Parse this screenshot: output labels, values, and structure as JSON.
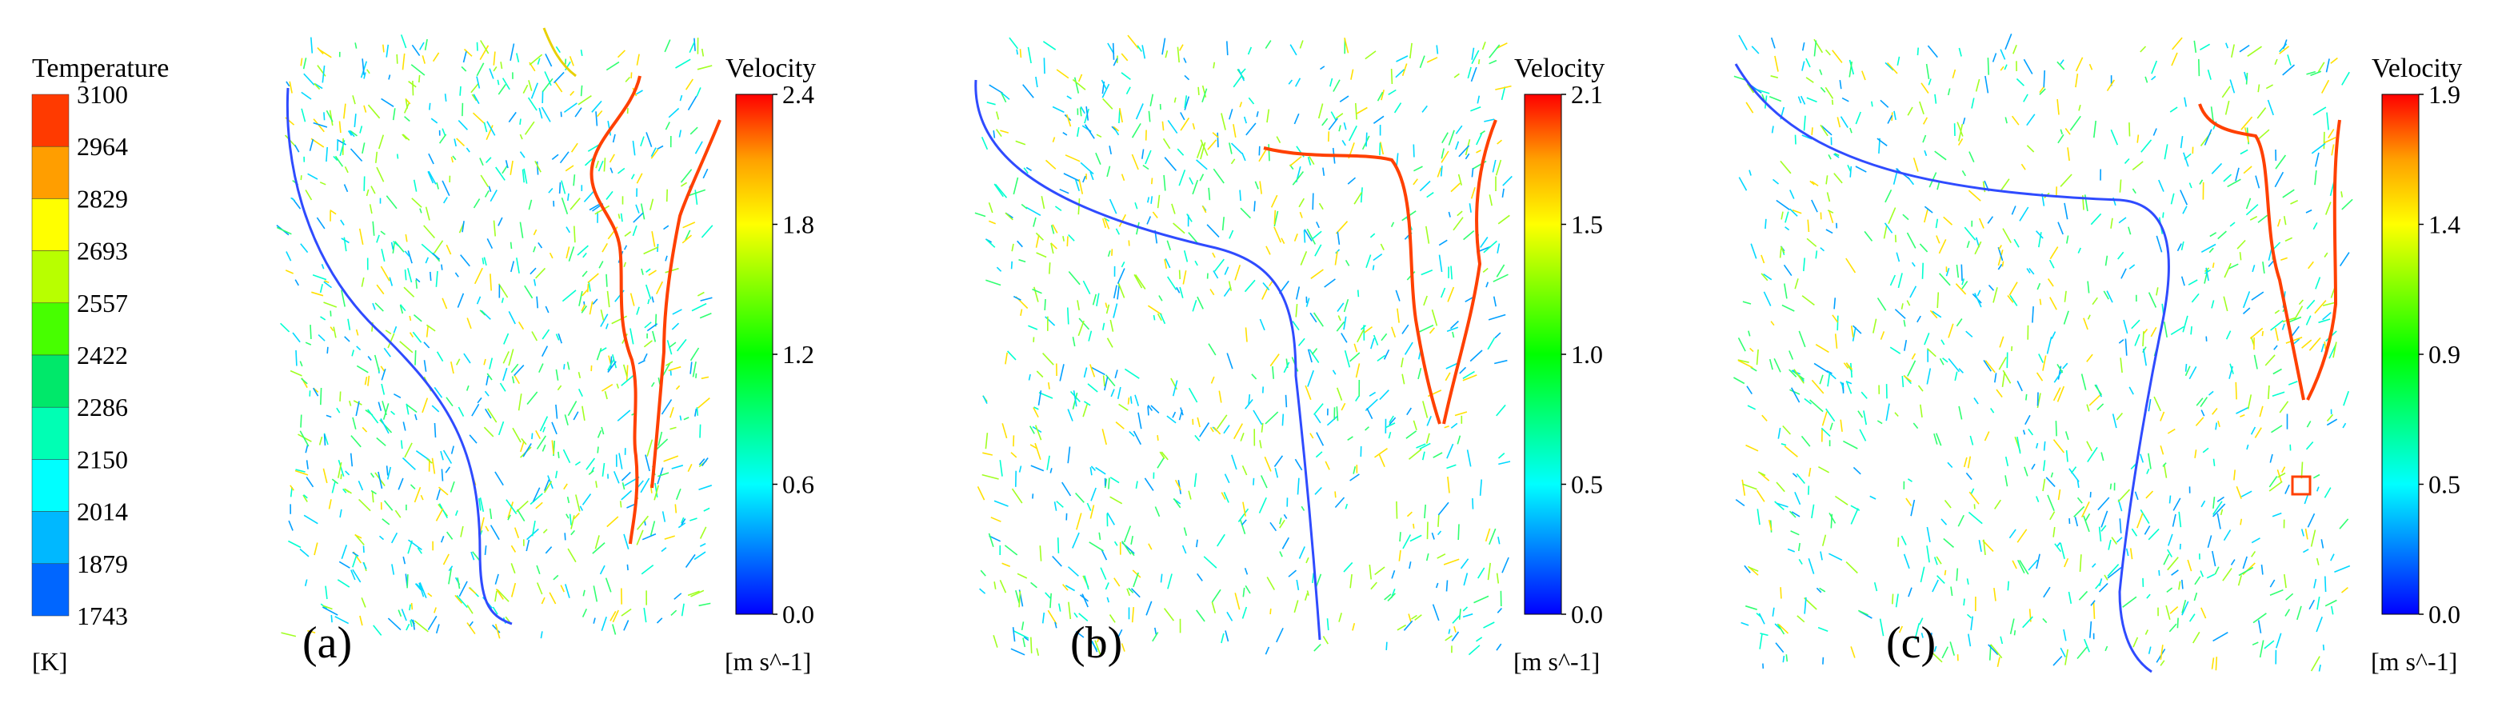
{
  "temperature_legend": {
    "title": "Temperature",
    "unit": "[K]",
    "levels": [
      "3100",
      "2964",
      "2829",
      "2693",
      "2557",
      "2422",
      "2286",
      "2150",
      "2014",
      "1879",
      "1743"
    ],
    "colors": [
      "#ff3a00",
      "#ff9e00",
      "#ffff00",
      "#b8ff00",
      "#47ff00",
      "#00e86a",
      "#00ffb4",
      "#00ffff",
      "#00b8ff",
      "#0066ff",
      "#0000ff"
    ]
  },
  "panels": [
    {
      "label": "(a)",
      "velocity": {
        "title": "Velocity",
        "unit": "[m s^-1]",
        "ticks": [
          "2.4",
          "1.8",
          "1.2",
          "0.6",
          "0.0"
        ]
      }
    },
    {
      "label": "(b)",
      "velocity": {
        "title": "Velocity",
        "unit": "[m s^-1]",
        "ticks": [
          "2.1",
          "1.5",
          "1.0",
          "0.5",
          "0.0"
        ]
      }
    },
    {
      "label": "(c)",
      "velocity": {
        "title": "Velocity",
        "unit": "[m s^-1]",
        "ticks": [
          "1.9",
          "1.4",
          "0.9",
          "0.5",
          "0.0"
        ]
      }
    }
  ],
  "colorbar_gradient": [
    "#0000ff",
    "#0080ff",
    "#00ffff",
    "#00ff80",
    "#00ff00",
    "#80ff00",
    "#ffff00",
    "#ffa000",
    "#ff0000"
  ]
}
